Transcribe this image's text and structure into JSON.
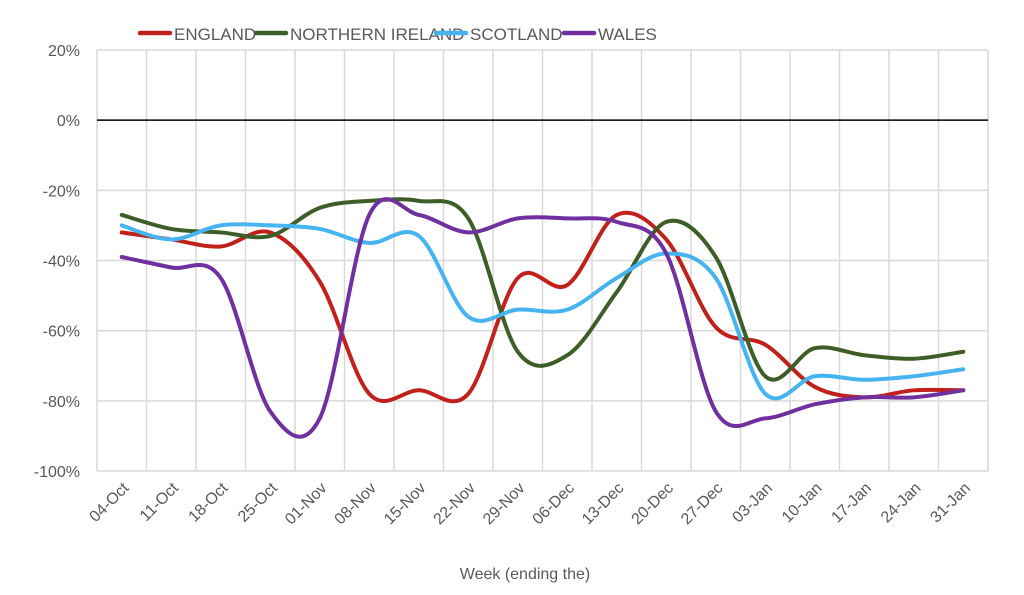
{
  "chart_data": {
    "type": "line",
    "title": "",
    "xlabel": "Week (ending the)",
    "ylabel": "",
    "ylim": [
      -100,
      20
    ],
    "yticks": [
      20,
      0,
      -20,
      -40,
      -60,
      -80,
      -100
    ],
    "ytick_labels": [
      "20%",
      "0%",
      "-20%",
      "-40%",
      "-60%",
      "-80%",
      "-100%"
    ],
    "grid": true,
    "smooth": true,
    "legend_position": "top",
    "categories": [
      "04-Oct",
      "11-Oct",
      "18-Oct",
      "25-Oct",
      "01-Nov",
      "08-Nov",
      "15-Nov",
      "22-Nov",
      "29-Nov",
      "06-Dec",
      "13-Dec",
      "20-Dec",
      "27-Dec",
      "03-Jan",
      "10-Jan",
      "17-Jan",
      "24-Jan",
      "31-Jan"
    ],
    "series": [
      {
        "name": "ENGLAND",
        "color": "#c0211b",
        "values": [
          -32,
          -34,
          -36,
          -32,
          -46,
          -78,
          -77,
          -78,
          -45,
          -47,
          -27,
          -34,
          -59,
          -64,
          -76,
          -79,
          -77,
          -77
        ]
      },
      {
        "name": "NORTHERN IRELAND",
        "color": "#3d5e27",
        "values": [
          -27,
          -31,
          -32,
          -33,
          -25,
          -23,
          -23,
          -28,
          -66,
          -67,
          -49,
          -29,
          -39,
          -73,
          -65,
          -67,
          -68,
          -66
        ]
      },
      {
        "name": "SCOTLAND",
        "color": "#45b4f0",
        "values": [
          -30,
          -34,
          -30,
          -30,
          -31,
          -35,
          -33,
          -56,
          -54,
          -54,
          -45,
          -38,
          -45,
          -78,
          -73,
          -74,
          -73,
          -71
        ]
      },
      {
        "name": "WALES",
        "color": "#7030a0",
        "values": [
          -39,
          -42,
          -45,
          -83,
          -85,
          -27,
          -27,
          -32,
          -28,
          -28,
          -29,
          -38,
          -83,
          -85,
          -81,
          -79,
          -79,
          -77
        ]
      }
    ]
  }
}
